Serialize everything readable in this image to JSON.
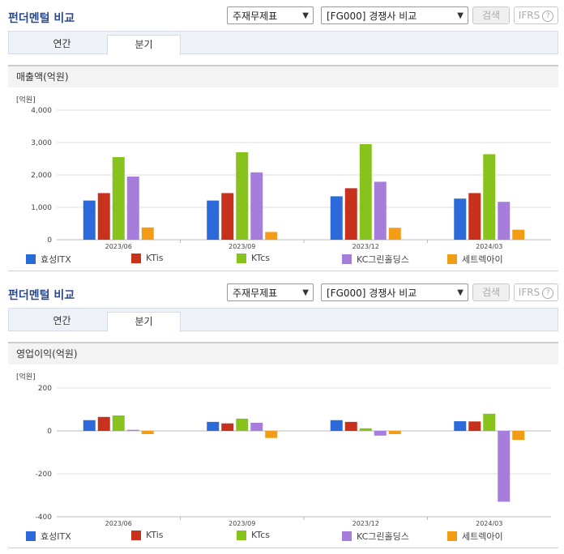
{
  "panels": [
    {
      "title": "펀더멘털 비교",
      "select_report": "주재무제표",
      "select_compare": "[FG000] 경쟁사 비교",
      "search_label": "검색",
      "ifrs_label": "IFRS",
      "tabs": [
        "연간",
        "분기"
      ],
      "active_tab": "분기",
      "section_title": "매출액(억원)",
      "unit": "[억원]"
    },
    {
      "title": "펀더멘털 비교",
      "select_report": "주재무제표",
      "select_compare": "[FG000] 경쟁사 비교",
      "search_label": "검색",
      "ifrs_label": "IFRS",
      "tabs": [
        "연간",
        "분기"
      ],
      "active_tab": "분기",
      "section_title": "영업이익(억원)",
      "unit": "[억원]"
    }
  ],
  "colors": {
    "효성ITX": "#2d6ad9",
    "KTis": "#c8321d",
    "KTcs": "#88c21c",
    "KC그린홀딩스": "#a77ddb",
    "세트렉아이": "#f39c16"
  },
  "chart_data": [
    {
      "type": "bar",
      "title": "매출액(억원)",
      "ylabel": "[억원]",
      "categories": [
        "2023/06",
        "2023/09",
        "2023/12",
        "2024/03"
      ],
      "ylim": [
        0,
        4000
      ],
      "yticks": [
        "4,000",
        "3,000",
        "2,000",
        "1,000",
        "0"
      ],
      "ytick_values": [
        4000,
        3000,
        2000,
        1000,
        0
      ],
      "series": [
        {
          "name": "효성ITX",
          "values": [
            1210,
            1210,
            1340,
            1270
          ]
        },
        {
          "name": "KTis",
          "values": [
            1440,
            1440,
            1590,
            1440
          ]
        },
        {
          "name": "KTcs",
          "values": [
            2550,
            2700,
            2950,
            2640
          ]
        },
        {
          "name": "KC그린홀딩스",
          "values": [
            1950,
            2080,
            1790,
            1170
          ]
        },
        {
          "name": "세트렉아이",
          "values": [
            380,
            240,
            370,
            310
          ]
        }
      ]
    },
    {
      "type": "bar",
      "title": "영업이익(억원)",
      "ylabel": "[억원]",
      "categories": [
        "2023/06",
        "2023/09",
        "2023/12",
        "2024/03"
      ],
      "ylim": [
        -400,
        200
      ],
      "yticks": [
        "200",
        "0",
        "-200",
        "-400"
      ],
      "ytick_values": [
        200,
        0,
        -200,
        -400
      ],
      "series": [
        {
          "name": "효성ITX",
          "values": [
            50,
            42,
            50,
            45
          ]
        },
        {
          "name": "KTis",
          "values": [
            65,
            35,
            42,
            44
          ]
        },
        {
          "name": "KTcs",
          "values": [
            72,
            57,
            12,
            80
          ]
        },
        {
          "name": "KC그린홀딩스",
          "values": [
            5,
            38,
            -22,
            -330
          ]
        },
        {
          "name": "세트렉아이",
          "values": [
            -15,
            -33,
            -15,
            -42
          ]
        }
      ]
    }
  ]
}
